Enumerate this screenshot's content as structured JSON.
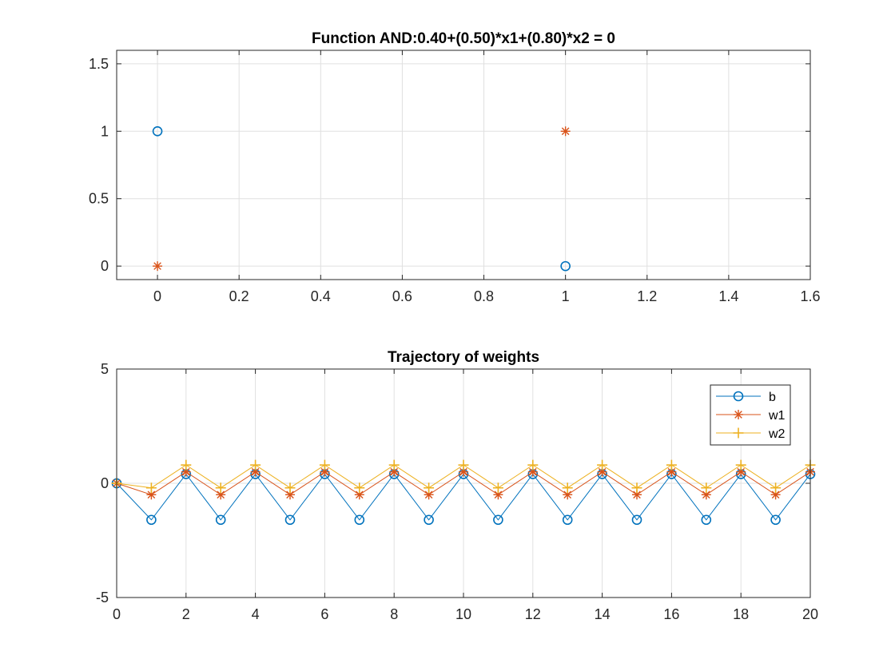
{
  "colors": {
    "b": "#0072BD",
    "w1": "#D95319",
    "w2": "#EDB120",
    "axis": "#262626",
    "grid": "#e0e0e0"
  },
  "chart_data": [
    {
      "type": "scatter",
      "title": "Function AND:0.40+(0.50)*x1+(0.80)*x2 = 0",
      "xlabel": "",
      "ylabel": "",
      "xlim": [
        -0.1,
        1.6
      ],
      "ylim": [
        -0.1,
        1.6
      ],
      "xticks": [
        0,
        0.2,
        0.4,
        0.6,
        0.8,
        1,
        1.2,
        1.4,
        1.6
      ],
      "xtick_labels": [
        "0",
        "0.2",
        "0.4",
        "0.6",
        "0.8",
        "1",
        "1.2",
        "1.4",
        "1.6"
      ],
      "yticks": [
        0,
        0.5,
        1,
        1.5
      ],
      "ytick_labels": [
        "0",
        "0.5",
        "1",
        "1.5"
      ],
      "grid": true,
      "series": [
        {
          "marker": "circle",
          "color_key": "b",
          "points": [
            [
              0,
              1
            ],
            [
              1,
              0
            ]
          ]
        },
        {
          "marker": "asterisk",
          "color_key": "w1",
          "points": [
            [
              0,
              0
            ],
            [
              1,
              1
            ]
          ]
        }
      ]
    },
    {
      "type": "line",
      "title": "Trajectory of weights",
      "xlabel": "",
      "ylabel": "",
      "xlim": [
        0,
        20
      ],
      "ylim": [
        -5,
        5
      ],
      "xticks": [
        0,
        2,
        4,
        6,
        8,
        10,
        12,
        14,
        16,
        18,
        20
      ],
      "xtick_labels": [
        "0",
        "2",
        "4",
        "6",
        "8",
        "10",
        "12",
        "14",
        "16",
        "18",
        "20"
      ],
      "yticks": [
        -5,
        0,
        5
      ],
      "ytick_labels": [
        "-5",
        "0",
        "5"
      ],
      "grid": true,
      "legend_position": "top-right",
      "x": [
        0,
        1,
        2,
        3,
        4,
        5,
        6,
        7,
        8,
        9,
        10,
        11,
        12,
        13,
        14,
        15,
        16,
        17,
        18,
        19,
        20
      ],
      "series": [
        {
          "name": "b",
          "marker": "circle",
          "color_key": "b",
          "values": [
            0,
            -1.6,
            0.4,
            -1.6,
            0.4,
            -1.6,
            0.4,
            -1.6,
            0.4,
            -1.6,
            0.4,
            -1.6,
            0.4,
            -1.6,
            0.4,
            -1.6,
            0.4,
            -1.6,
            0.4,
            -1.6,
            0.4
          ]
        },
        {
          "name": "w1",
          "marker": "asterisk",
          "color_key": "w1",
          "values": [
            0,
            -0.5,
            0.5,
            -0.5,
            0.5,
            -0.5,
            0.5,
            -0.5,
            0.5,
            -0.5,
            0.5,
            -0.5,
            0.5,
            -0.5,
            0.5,
            -0.5,
            0.5,
            -0.5,
            0.5,
            -0.5,
            0.5
          ]
        },
        {
          "name": "w2",
          "marker": "plus",
          "color_key": "w2",
          "values": [
            0,
            -0.2,
            0.8,
            -0.2,
            0.8,
            -0.2,
            0.8,
            -0.2,
            0.8,
            -0.2,
            0.8,
            -0.2,
            0.8,
            -0.2,
            0.8,
            -0.2,
            0.8,
            -0.2,
            0.8,
            -0.2,
            0.8
          ]
        }
      ]
    }
  ]
}
